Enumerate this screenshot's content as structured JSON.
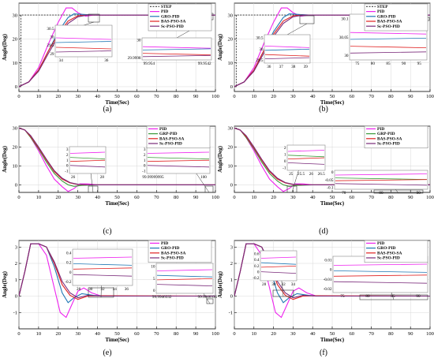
{
  "colors": {
    "STEP": "#555555",
    "PID": "#ee22ee",
    "GRO-PID": "#1f77b4",
    "BAS-PSO-SA": "#e02020",
    "Sc-PSO-PID": "#7a2a7a",
    "GRP-PID": "#3a9a3a",
    "inset_box": "#888888"
  },
  "chart_data": [
    {
      "panel": "(a)",
      "type": "line",
      "xlabel": "Time(Sec)",
      "ylabel": "Angle(Deg)",
      "xlim": [
        0,
        100
      ],
      "ylim": [
        -2,
        35
      ],
      "xticks": [
        "0",
        "10",
        "20",
        "30",
        "40",
        "50",
        "60",
        "70",
        "80",
        "90",
        "100"
      ],
      "yticks": [
        "0",
        "10",
        "20",
        "30"
      ],
      "legend": [
        "STEP",
        "PID",
        "GRO-PID",
        "BAS-PSO-SA",
        "Sc-PSO-PID"
      ],
      "series": [
        {
          "name": "STEP",
          "x": [
            0,
            1,
            1,
            100
          ],
          "y": [
            0,
            0,
            30,
            30
          ]
        },
        {
          "name": "PID",
          "x": [
            0,
            5,
            10,
            15,
            20,
            24,
            27,
            30,
            34,
            38,
            45,
            60,
            100
          ],
          "y": [
            0,
            2,
            8,
            18,
            27,
            33,
            33,
            31,
            29.5,
            30,
            30,
            30,
            30
          ]
        },
        {
          "name": "GRO-PID",
          "x": [
            0,
            5,
            10,
            15,
            20,
            25,
            28,
            32,
            38,
            50,
            100
          ],
          "y": [
            0,
            2,
            7,
            15,
            23,
            29,
            30.5,
            30.3,
            30,
            30,
            30
          ]
        },
        {
          "name": "BAS-PSO-SA",
          "x": [
            0,
            5,
            10,
            15,
            20,
            25,
            30,
            35,
            45,
            100
          ],
          "y": [
            0,
            2,
            7,
            15,
            22,
            27.5,
            29.7,
            30,
            30,
            30
          ]
        },
        {
          "name": "Sc-PSO-PID",
          "x": [
            0,
            5,
            10,
            15,
            20,
            25,
            30,
            35,
            45,
            100
          ],
          "y": [
            0,
            2,
            6.5,
            14,
            21,
            26.5,
            29.3,
            30,
            30,
            30
          ]
        }
      ],
      "insets": [
        {
          "xticks": [
            "34",
            "36"
          ],
          "yticks": [
            "30.5",
            "30",
            "29.5",
            "29"
          ]
        },
        {
          "xticks": [
            "99.954",
            "99.9542"
          ],
          "yticks": [
            "30",
            "29.9998"
          ]
        }
      ]
    },
    {
      "panel": "(b)",
      "type": "line",
      "xlabel": "Time(Sec)",
      "ylabel": "Angle(Deg)",
      "xlim": [
        0,
        100
      ],
      "ylim": [
        -2,
        35
      ],
      "xticks": [
        "0",
        "10",
        "20",
        "30",
        "40",
        "50",
        "60",
        "70",
        "80",
        "90",
        "100"
      ],
      "yticks": [
        "0",
        "10",
        "20",
        "30"
      ],
      "legend": [
        "STEP",
        "PID",
        "GRO-PID",
        "BAS-PSO-SA",
        "Sc-PSO-PID"
      ],
      "series": [
        {
          "name": "STEP",
          "x": [
            0,
            1,
            1,
            100
          ],
          "y": [
            0,
            0,
            30,
            30
          ]
        },
        {
          "name": "PID",
          "x": [
            0,
            5,
            10,
            15,
            20,
            24,
            27,
            30,
            34,
            38,
            45,
            60,
            100
          ],
          "y": [
            0,
            2,
            8,
            18,
            27,
            33,
            33,
            31,
            29.5,
            30,
            30,
            30,
            30
          ]
        },
        {
          "name": "GRO-PID",
          "x": [
            0,
            5,
            10,
            15,
            20,
            25,
            28,
            32,
            38,
            50,
            100
          ],
          "y": [
            0,
            2,
            7,
            15,
            23,
            29,
            30.5,
            30.3,
            30,
            30,
            30
          ]
        },
        {
          "name": "BAS-PSO-SA",
          "x": [
            0,
            5,
            10,
            15,
            20,
            25,
            30,
            35,
            45,
            100
          ],
          "y": [
            0,
            2,
            7,
            15,
            22,
            27.5,
            29.7,
            30,
            30,
            30
          ]
        },
        {
          "name": "Sc-PSO-PID",
          "x": [
            0,
            5,
            10,
            15,
            20,
            25,
            30,
            35,
            45,
            100
          ],
          "y": [
            0,
            2,
            6.5,
            14,
            21,
            26.5,
            29.3,
            30,
            30,
            30
          ]
        }
      ],
      "insets": [
        {
          "xticks": [
            "36",
            "37",
            "38",
            "39"
          ],
          "yticks": [
            "30.5",
            "30",
            "29.5"
          ]
        },
        {
          "xticks": [
            "75",
            "80",
            "85",
            "90",
            "95"
          ],
          "yticks": [
            "30.1",
            "30.05",
            "30"
          ]
        }
      ]
    },
    {
      "panel": "(c)",
      "type": "line",
      "xlabel": "Time(Sec)",
      "ylabel": "Angle(Deg)",
      "xlim": [
        0,
        100
      ],
      "ylim": [
        -4,
        31
      ],
      "xticks": [
        "0",
        "10",
        "20",
        "30",
        "40",
        "50",
        "60",
        "70",
        "80",
        "90",
        "100"
      ],
      "yticks": [
        "0",
        "10",
        "20",
        "30"
      ],
      "legend": [
        "PID",
        "GRP-PID",
        "BAS-PSO-SA",
        "Sc-PSO-PID"
      ],
      "series": [
        {
          "name": "PID",
          "x": [
            0,
            3,
            6,
            10,
            14,
            18,
            22,
            25,
            28,
            31,
            35,
            40,
            100
          ],
          "y": [
            30,
            29,
            25,
            18,
            10,
            3,
            -1,
            -3.5,
            -2,
            0.5,
            0.5,
            0,
            0
          ]
        },
        {
          "name": "GRP-PID",
          "x": [
            0,
            3,
            6,
            10,
            14,
            18,
            22,
            25,
            28,
            32,
            40,
            100
          ],
          "y": [
            30,
            29,
            25,
            19,
            12,
            6,
            2,
            0,
            -0.8,
            -0.3,
            0,
            0
          ]
        },
        {
          "name": "BAS-PSO-SA",
          "x": [
            0,
            3,
            6,
            10,
            14,
            18,
            22,
            26,
            30,
            35,
            45,
            100
          ],
          "y": [
            30,
            29,
            25.5,
            19.5,
            13,
            7,
            3,
            1,
            0.2,
            0,
            0,
            0
          ]
        },
        {
          "name": "Sc-PSO-PID",
          "x": [
            0,
            3,
            6,
            10,
            14,
            18,
            22,
            26,
            30,
            35,
            45,
            100
          ],
          "y": [
            30,
            29,
            26,
            20,
            13.5,
            7.5,
            3.5,
            1.2,
            0.3,
            0,
            0,
            0
          ]
        }
      ],
      "insets": [
        {
          "xticks": [
            "26",
            "28"
          ],
          "yticks": [
            "3",
            "2",
            "1",
            "0",
            "-1"
          ]
        },
        {
          "xticks": [
            "99.99999995",
            "100"
          ],
          "yticks": [
            "3",
            "2",
            "1",
            "0",
            "-1"
          ],
          "multiplier": "× 10⁻⁴"
        }
      ]
    },
    {
      "panel": "(d)",
      "type": "line",
      "xlabel": "Time(Sec)",
      "ylabel": "Angle(Deg)",
      "xlim": [
        0,
        100
      ],
      "ylim": [
        -4,
        31
      ],
      "xticks": [
        "0",
        "10",
        "20",
        "30",
        "40",
        "50",
        "60",
        "70",
        "80",
        "90",
        "100"
      ],
      "yticks": [
        "0",
        "10",
        "20",
        "30"
      ],
      "legend": [
        "PID",
        "GRP-PID",
        "BAS-PSO-SA",
        "Sc-PSO-PID"
      ],
      "series": [
        {
          "name": "PID",
          "x": [
            0,
            3,
            6,
            10,
            14,
            18,
            22,
            25,
            28,
            31,
            35,
            40,
            100
          ],
          "y": [
            30,
            29,
            25,
            18,
            10,
            3,
            -1,
            -3.5,
            -2,
            0.5,
            0.5,
            0,
            0
          ]
        },
        {
          "name": "GRP-PID",
          "x": [
            0,
            3,
            6,
            10,
            14,
            18,
            22,
            25,
            28,
            32,
            40,
            100
          ],
          "y": [
            30,
            29,
            25,
            19,
            12,
            6,
            2,
            0,
            -0.8,
            -0.3,
            0,
            0
          ]
        },
        {
          "name": "BAS-PSO-SA",
          "x": [
            0,
            3,
            6,
            10,
            14,
            18,
            22,
            26,
            30,
            35,
            45,
            100
          ],
          "y": [
            30,
            29,
            25.5,
            19.5,
            13,
            7,
            3,
            1,
            0.2,
            0,
            0,
            0
          ]
        },
        {
          "name": "Sc-PSO-PID",
          "x": [
            0,
            3,
            6,
            10,
            14,
            18,
            22,
            26,
            30,
            35,
            45,
            100
          ],
          "y": [
            30,
            29,
            26,
            20,
            13.5,
            7.5,
            3.5,
            1.2,
            0.3,
            0,
            0,
            0
          ]
        }
      ],
      "insets": [
        {
          "xticks": [
            "25",
            "25.5",
            "26",
            "26.5"
          ],
          "yticks": [
            "2",
            "1",
            "0",
            "-1"
          ]
        },
        {
          "xticks": [
            "70",
            "80",
            "90"
          ],
          "yticks": [
            "0",
            "-0.05",
            "-0.1"
          ]
        }
      ]
    },
    {
      "panel": "(e)",
      "type": "line",
      "xlabel": "Time(Sec)",
      "ylabel": "Angle(Deg)",
      "xlim": [
        0,
        100
      ],
      "ylim": [
        -2,
        3.4
      ],
      "xticks": [
        "0",
        "10",
        "20",
        "30",
        "40",
        "50",
        "60",
        "70",
        "80",
        "90",
        "100"
      ],
      "yticks": [
        "-1",
        "0",
        "1",
        "2",
        "3"
      ],
      "legend": [
        "PID",
        "GRO-PID",
        "BAS-PSO-SA",
        "Sc-PSO-PID"
      ],
      "series": [
        {
          "name": "PID",
          "x": [
            0,
            3,
            6,
            10,
            14,
            18,
            21,
            24,
            27,
            30,
            33,
            37,
            42,
            50,
            100
          ],
          "y": [
            0,
            1.5,
            3.2,
            3.2,
            2.5,
            0.5,
            -1,
            -1.3,
            -0.5,
            0.3,
            0.5,
            0.2,
            0,
            0,
            0
          ]
        },
        {
          "name": "GRO-PID",
          "x": [
            0,
            3,
            6,
            10,
            14,
            18,
            22,
            25,
            28,
            32,
            38,
            45,
            100
          ],
          "y": [
            0,
            1.5,
            3.2,
            3.2,
            3.0,
            1.8,
            0.2,
            -0.4,
            -0.1,
            0.15,
            0.05,
            0,
            0
          ]
        },
        {
          "name": "BAS-PSO-SA",
          "x": [
            0,
            3,
            6,
            10,
            14,
            18,
            22,
            26,
            30,
            35,
            42,
            100
          ],
          "y": [
            0,
            1.5,
            3.2,
            3.2,
            3.0,
            2.0,
            0.7,
            0.05,
            -0.2,
            0,
            0.02,
            0
          ]
        },
        {
          "name": "Sc-PSO-PID",
          "x": [
            0,
            3,
            6,
            10,
            14,
            18,
            22,
            26,
            30,
            35,
            42,
            100
          ],
          "y": [
            0,
            1.5,
            3.2,
            3.2,
            3.0,
            2.1,
            0.9,
            0.2,
            -0.1,
            0.05,
            0,
            0
          ]
        }
      ],
      "insets": [
        {
          "xticks": [
            "28",
            "30",
            "32",
            "34",
            "36"
          ],
          "yticks": [
            "0.4",
            "0.2",
            "0",
            "-0.2"
          ]
        },
        {
          "xticks": [
            "99.9946332",
            "99.9946336"
          ],
          "yticks": [
            "10",
            "5",
            "0"
          ],
          "multiplier": "× 10⁻⁵"
        }
      ]
    },
    {
      "panel": "(f)",
      "type": "line",
      "xlabel": "Time(Sec)",
      "ylabel": "Angle(Deg)",
      "xlim": [
        0,
        100
      ],
      "ylim": [
        -2,
        3.4
      ],
      "xticks": [
        "0",
        "10",
        "20",
        "30",
        "40",
        "50",
        "60",
        "70",
        "80",
        "90",
        "100"
      ],
      "yticks": [
        "-1",
        "0",
        "1",
        "2",
        "3"
      ],
      "legend": [
        "PID",
        "GRO-PID",
        "BAS-PSO-SA",
        "Sc-PSO-PID"
      ],
      "series": [
        {
          "name": "PID",
          "x": [
            0,
            3,
            6,
            10,
            14,
            18,
            21,
            24,
            27,
            30,
            33,
            37,
            42,
            50,
            100
          ],
          "y": [
            0,
            1.5,
            3.2,
            3.2,
            2.5,
            0.5,
            -1,
            -1.3,
            -0.5,
            0.3,
            0.5,
            0.2,
            0,
            0,
            0
          ]
        },
        {
          "name": "GRO-PID",
          "x": [
            0,
            3,
            6,
            10,
            14,
            18,
            22,
            25,
            28,
            32,
            38,
            45,
            100
          ],
          "y": [
            0,
            1.5,
            3.2,
            3.2,
            3.0,
            1.8,
            0.2,
            -0.4,
            -0.1,
            0.15,
            0.05,
            0,
            0
          ]
        },
        {
          "name": "BAS-PSO-SA",
          "x": [
            0,
            3,
            6,
            10,
            14,
            18,
            22,
            26,
            30,
            35,
            42,
            100
          ],
          "y": [
            0,
            1.5,
            3.2,
            3.2,
            3.0,
            2.0,
            0.7,
            0.05,
            -0.2,
            0,
            0.02,
            0
          ]
        },
        {
          "name": "Sc-PSO-PID",
          "x": [
            0,
            3,
            6,
            10,
            14,
            18,
            22,
            26,
            30,
            35,
            42,
            100
          ],
          "y": [
            0,
            1.5,
            3.2,
            3.2,
            3.0,
            2.1,
            0.9,
            0.2,
            -0.1,
            0.05,
            0,
            0
          ]
        }
      ],
      "insets": [
        {
          "xticks": [
            "28",
            "30",
            "32",
            "34"
          ],
          "yticks": [
            "0.6",
            "0.4",
            "0.2",
            "0",
            "-0.2"
          ]
        },
        {
          "xticks": [
            "75",
            "80",
            "85",
            "90"
          ],
          "yticks": [
            "0.01",
            "0",
            "-0.01",
            "-0.02"
          ]
        }
      ]
    }
  ]
}
